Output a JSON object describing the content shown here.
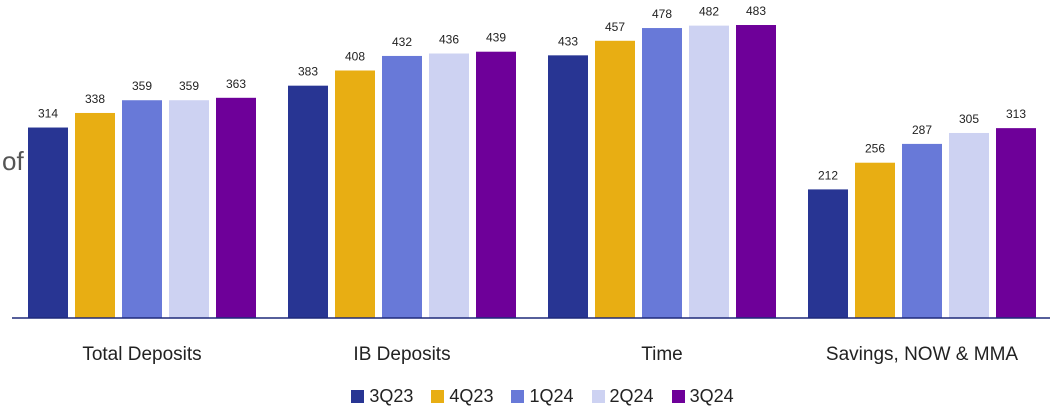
{
  "chart_data": {
    "type": "bar",
    "title": "",
    "xlabel": "",
    "ylabel": "",
    "categories": [
      "Total Deposits",
      "IB Deposits",
      "Time",
      "Savings, NOW & MMA"
    ],
    "series": [
      {
        "name": "3Q23",
        "color": "#283593",
        "values": [
          314,
          383,
          433,
          212
        ]
      },
      {
        "name": "4Q23",
        "color": "#E8AE13",
        "values": [
          338,
          408,
          457,
          256
        ]
      },
      {
        "name": "1Q24",
        "color": "#6879D8",
        "values": [
          359,
          432,
          478,
          287
        ]
      },
      {
        "name": "2Q24",
        "color": "#CDD2F2",
        "values": [
          359,
          436,
          482,
          305
        ]
      },
      {
        "name": "3Q24",
        "color": "#6E0099",
        "values": [
          363,
          439,
          483,
          313
        ]
      }
    ],
    "ylim": [
      0,
      490
    ],
    "grid": false,
    "legend_position": "bottom",
    "data_labels": true
  },
  "fragment_text": "of"
}
